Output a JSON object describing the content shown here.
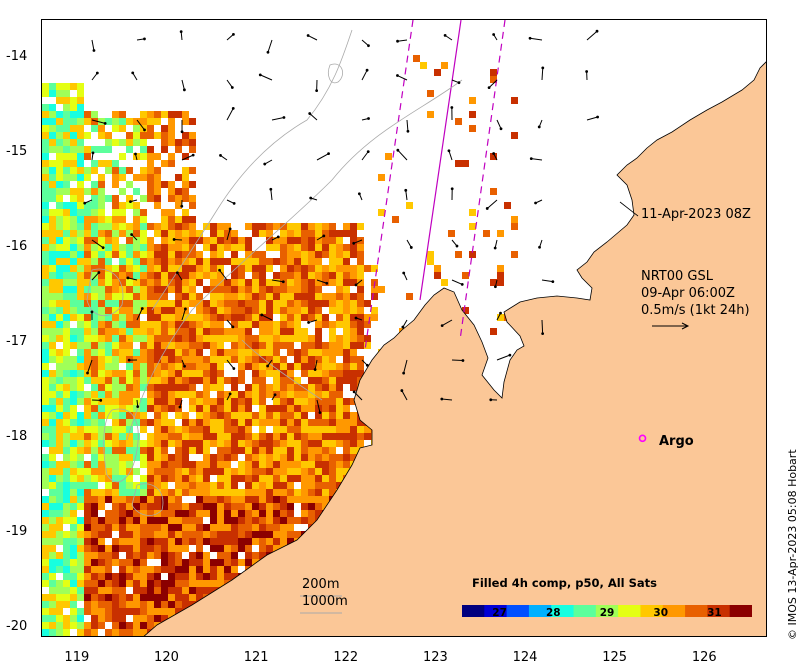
{
  "axes": {
    "y_labels": [
      "-14",
      "-15",
      "-16",
      "-17",
      "-18",
      "-19",
      "-20"
    ],
    "x_labels": [
      "119",
      "120",
      "121",
      "122",
      "123",
      "124",
      "125",
      "126"
    ],
    "lon_range": [
      118.6,
      126.7
    ],
    "lat_range": [
      -20.1,
      -13.6
    ]
  },
  "annotations": {
    "swath_time": "11-Apr-2023 08Z",
    "current_product": "NRT00 GSL",
    "current_time": "09-Apr 06:00Z",
    "current_scale": "0.5m/s (1kt 24h)",
    "argo_label": "Argo",
    "depth_200": "200m",
    "depth_1000": "1000m",
    "credit": "© IMOS 13-Apr-2023 05:08 Hobart"
  },
  "colorbar": {
    "title": "Filled 4h comp, p50, All Sats",
    "ticks": [
      "27",
      "28",
      "29",
      "30",
      "31"
    ],
    "min": 26.3,
    "max": 31.7,
    "colors": [
      "#00007f",
      "#0000d6",
      "#0050ff",
      "#00b0ff",
      "#18ffe0",
      "#5cff9c",
      "#a0ff58",
      "#e4ff14",
      "#ffc800",
      "#ff9800",
      "#e86000",
      "#c83000",
      "#8b0000"
    ]
  },
  "argo": {
    "lon": 125.3,
    "lat": -18.0
  },
  "colors": {
    "land": "#fbc797",
    "swath": "#c000c0",
    "argo": "#ff00ff",
    "contour": "#aaaaaa"
  }
}
